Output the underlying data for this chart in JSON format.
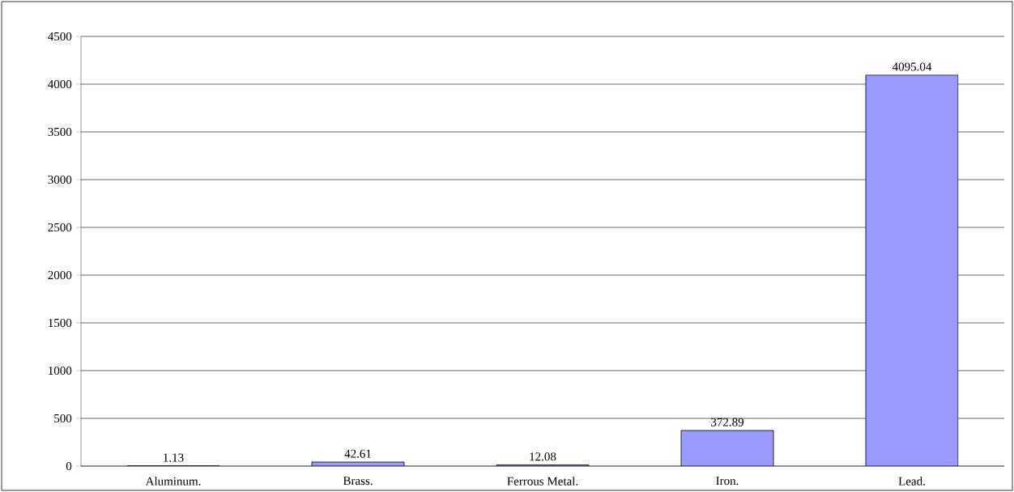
{
  "chart_data": {
    "type": "bar",
    "categories": [
      "Aluminum.",
      "Brass.",
      "Ferrous Metal.",
      "Iron.",
      "Lead."
    ],
    "values": [
      1.13,
      42.61,
      12.08,
      372.89,
      4095.04
    ],
    "color": "#9999ff",
    "ylim": [
      0,
      4500
    ],
    "yticks": [
      0,
      500,
      1000,
      1500,
      2000,
      2500,
      3000,
      3500,
      4000,
      4500
    ],
    "grid": "y",
    "data_labels": true
  }
}
